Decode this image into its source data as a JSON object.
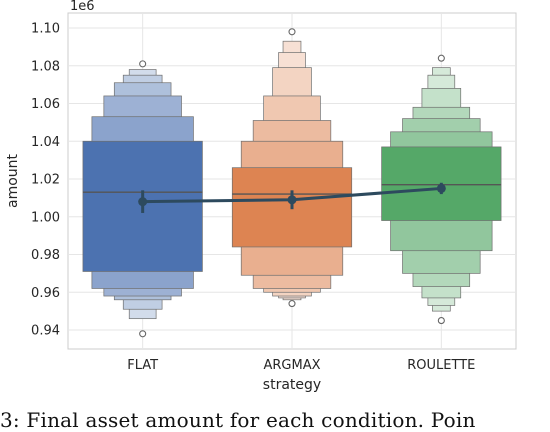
{
  "chart_data": {
    "type": "boxen",
    "xlabel": "strategy",
    "ylabel": "amount",
    "y_scale_label": "1e6",
    "ylim": [
      0.935,
      1.102
    ],
    "yticks": [
      0.94,
      0.96,
      0.98,
      1.0,
      1.02,
      1.04,
      1.06,
      1.08,
      1.1
    ],
    "ytick_labels": [
      "0.94",
      "0.96",
      "0.98",
      "1.00",
      "1.02",
      "1.04",
      "1.06",
      "1.08",
      "1.10"
    ],
    "grid": true,
    "categories": [
      "FLAT",
      "ARGMAX",
      "ROULETTE"
    ],
    "series": [
      {
        "category": "FLAT",
        "color": "#4c72b0",
        "median": 1.013,
        "levels": [
          [
            0.971,
            1.04
          ],
          [
            0.962,
            1.053
          ],
          [
            0.958,
            1.064
          ],
          [
            0.956,
            1.071
          ],
          [
            0.951,
            1.075
          ],
          [
            0.946,
            1.078
          ]
        ],
        "outliers": [
          0.938,
          1.081
        ]
      },
      {
        "category": "ARGMAX",
        "color": "#dd8452",
        "median": 1.012,
        "levels": [
          [
            0.984,
            1.026
          ],
          [
            0.969,
            1.04
          ],
          [
            0.962,
            1.051
          ],
          [
            0.96,
            1.064
          ],
          [
            0.958,
            1.079
          ],
          [
            0.957,
            1.087
          ],
          [
            0.956,
            1.093
          ]
        ],
        "outliers": [
          0.954,
          1.098
        ]
      },
      {
        "category": "ROULETTE",
        "color": "#55a868",
        "median": 1.017,
        "levels": [
          [
            0.998,
            1.037
          ],
          [
            0.982,
            1.045
          ],
          [
            0.97,
            1.052
          ],
          [
            0.963,
            1.058
          ],
          [
            0.957,
            1.068
          ],
          [
            0.953,
            1.075
          ],
          [
            0.95,
            1.079
          ]
        ],
        "outliers": [
          0.945,
          1.084
        ]
      }
    ],
    "mean_line": {
      "color": "#2d4a5e",
      "values": [
        1.008,
        1.009,
        1.015
      ],
      "ci": [
        [
          1.002,
          1.014
        ],
        [
          1.004,
          1.014
        ],
        [
          1.012,
          1.018
        ]
      ]
    }
  },
  "caption": "3: Final asset amount for each condition. Poin"
}
